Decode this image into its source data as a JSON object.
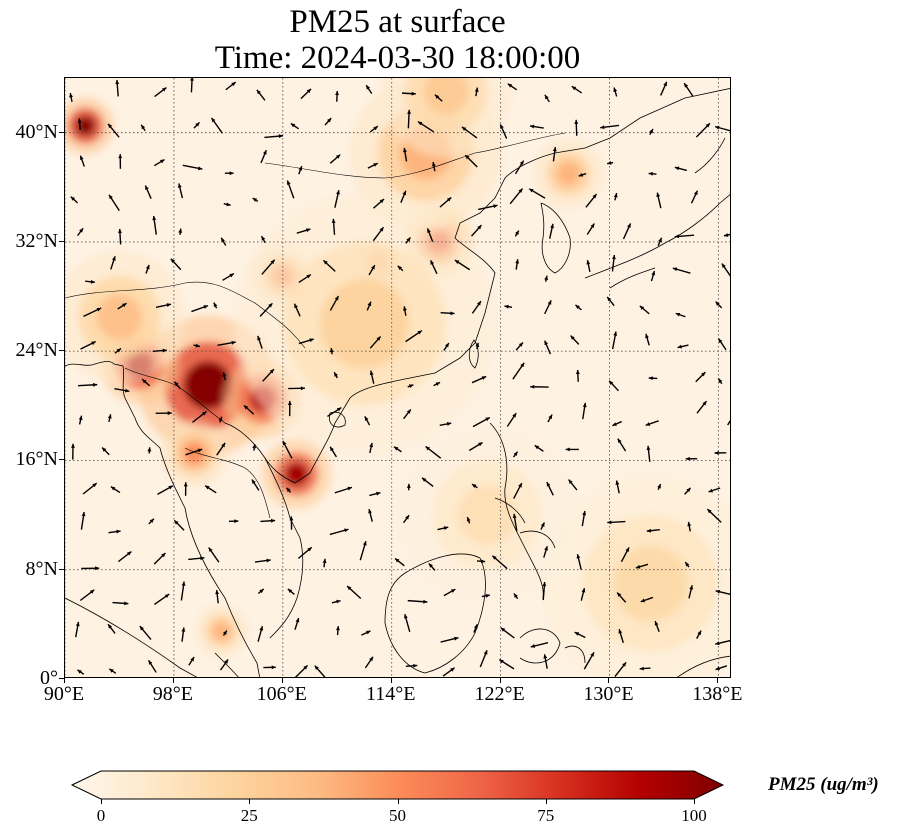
{
  "title": {
    "line1": "PM25 at surface",
    "line2": "Time: 2024-03-30 18:00:00"
  },
  "map": {
    "lon_range": [
      90,
      139
    ],
    "lat_range": [
      0,
      44
    ],
    "grid": true,
    "lat_ticks": [
      {
        "value": 0,
        "label": "0°"
      },
      {
        "value": 8,
        "label": "8°N"
      },
      {
        "value": 16,
        "label": "16°N"
      },
      {
        "value": 24,
        "label": "24°N"
      },
      {
        "value": 32,
        "label": "32°N"
      },
      {
        "value": 40,
        "label": "40°N"
      }
    ],
    "lon_ticks": [
      {
        "value": 90,
        "label": "90°E"
      },
      {
        "value": 98,
        "label": "98°E"
      },
      {
        "value": 106,
        "label": "106°E"
      },
      {
        "value": 114,
        "label": "114°E"
      },
      {
        "value": 122,
        "label": "122°E"
      },
      {
        "value": 130,
        "label": "130°E"
      },
      {
        "value": 138,
        "label": "138°E"
      }
    ],
    "hotspots": [
      {
        "lon": 100.5,
        "lat": 21.5,
        "value": 100,
        "spread": 3.2
      },
      {
        "lon": 95.5,
        "lat": 23.0,
        "value": 90,
        "spread": 1.8
      },
      {
        "lon": 104.5,
        "lat": 20.5,
        "value": 85,
        "spread": 1.8
      },
      {
        "lon": 107.0,
        "lat": 15.0,
        "value": 92,
        "spread": 1.6
      },
      {
        "lon": 91.5,
        "lat": 40.5,
        "value": 100,
        "spread": 1.3
      },
      {
        "lon": 117.5,
        "lat": 32.0,
        "value": 60,
        "spread": 1.6
      },
      {
        "lon": 113.0,
        "lat": 30.5,
        "value": 55,
        "spread": 1.0
      },
      {
        "lon": 106.0,
        "lat": 29.5,
        "value": 45,
        "spread": 1.5
      },
      {
        "lon": 116.5,
        "lat": 38.5,
        "value": 40,
        "spread": 3.5
      },
      {
        "lon": 127.0,
        "lat": 37.0,
        "value": 40,
        "spread": 1.6
      },
      {
        "lon": 112.0,
        "lat": 26.0,
        "value": 25,
        "spread": 6.0
      },
      {
        "lon": 94.0,
        "lat": 26.5,
        "value": 35,
        "spread": 3.0
      },
      {
        "lon": 101.5,
        "lat": 3.5,
        "value": 40,
        "spread": 1.2
      },
      {
        "lon": 99.5,
        "lat": 16.5,
        "value": 50,
        "spread": 1.5
      },
      {
        "lon": 133.0,
        "lat": 7.0,
        "value": 22,
        "spread": 5.0
      },
      {
        "lon": 121.0,
        "lat": 12.0,
        "value": 18,
        "spread": 4.0
      },
      {
        "lon": 118.0,
        "lat": 43.0,
        "value": 30,
        "spread": 3.0
      }
    ]
  },
  "colorbar": {
    "label": "PM25 (ug/m³)",
    "min": 0,
    "max": 100,
    "ticks": [
      {
        "value": 0,
        "label": "0"
      },
      {
        "value": 25,
        "label": "25"
      },
      {
        "value": 50,
        "label": "50"
      },
      {
        "value": 75,
        "label": "75"
      },
      {
        "value": 100,
        "label": "100"
      }
    ],
    "colormap": "OrRd",
    "colors": [
      "#fff7ec",
      "#fee8c8",
      "#fdd49e",
      "#fdbb84",
      "#fc8d59",
      "#ef6548",
      "#d7301f",
      "#b30000",
      "#7f0000"
    ]
  },
  "colors": {
    "background": "#ffffff",
    "coastline": "#000000",
    "grid": "#555555",
    "vectors": "#000000"
  }
}
